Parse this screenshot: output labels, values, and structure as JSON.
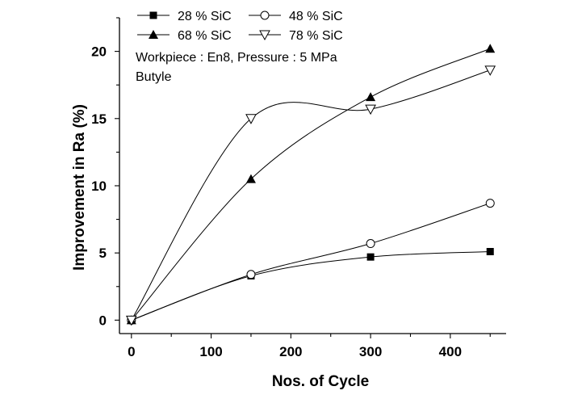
{
  "chart_data": {
    "type": "scatter",
    "title": "",
    "xlabel": "Nos. of Cycle",
    "ylabel": "Improvement in Ra (%)",
    "xlim": [
      -15,
      470
    ],
    "ylim": [
      -1,
      22.5
    ],
    "xticks": [
      0,
      100,
      200,
      300,
      400
    ],
    "yticks": [
      0,
      5,
      10,
      15,
      20
    ],
    "grid": false,
    "legend": "top-left",
    "series": [
      {
        "name": "28 % SiC",
        "marker": "filled-square",
        "x": [
          0,
          150,
          300,
          450
        ],
        "y": [
          0,
          3.3,
          4.7,
          5.1
        ]
      },
      {
        "name": "48 % SiC",
        "marker": "open-circle",
        "x": [
          0,
          150,
          300,
          450
        ],
        "y": [
          0,
          3.4,
          5.7,
          8.7
        ]
      },
      {
        "name": "68 % SiC",
        "marker": "filled-triangle-up",
        "x": [
          0,
          150,
          300,
          450
        ],
        "y": [
          0,
          10.5,
          16.6,
          20.2
        ]
      },
      {
        "name": "78 % SiC",
        "marker": "open-triangle-down",
        "x": [
          0,
          150,
          300,
          450
        ],
        "y": [
          0,
          15,
          15.7,
          18.6
        ]
      }
    ],
    "annotations": [
      "Workpiece : En8, Pressure : 5 MPa",
      "Butyle"
    ]
  }
}
